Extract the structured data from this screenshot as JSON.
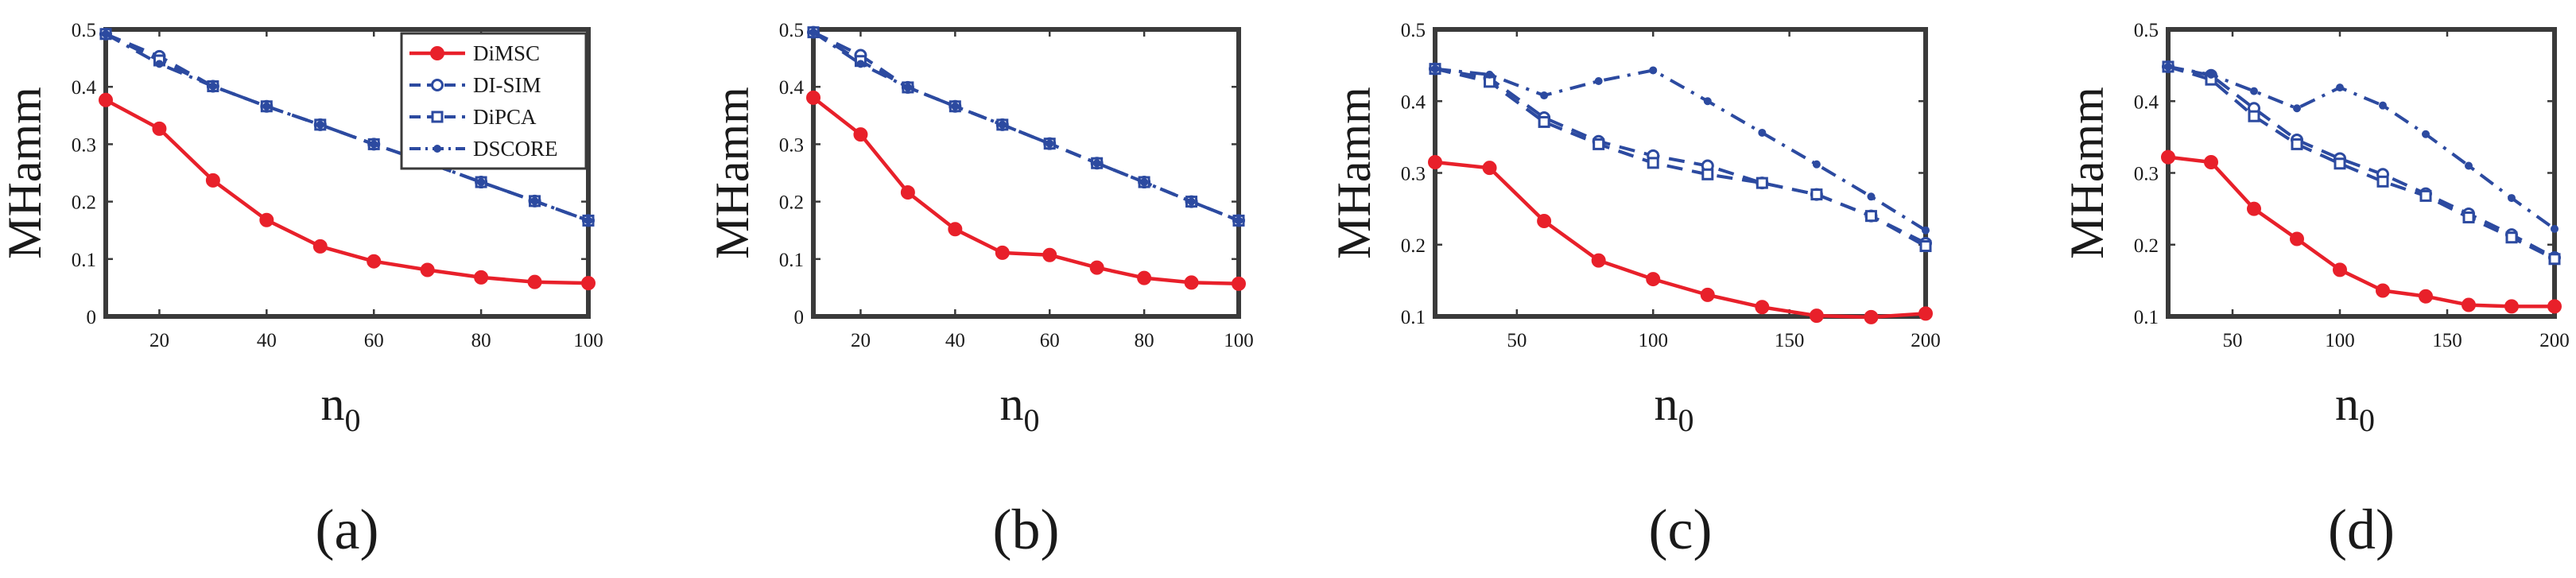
{
  "figure": {
    "colors": {
      "red": "#e8202a",
      "blue": "#2c4aa0",
      "axis": "#3a3a3a"
    }
  },
  "chart_data": [
    {
      "type": "line",
      "caption": "(a)",
      "xlabel_main": "n",
      "xlabel_sub": "0",
      "ylabel": "MHamm",
      "xlim": [
        10,
        100
      ],
      "ylim": [
        0,
        0.5
      ],
      "xticks": [
        20,
        40,
        60,
        80,
        100
      ],
      "yticks": [
        0,
        0.1,
        0.2,
        0.3,
        0.4,
        0.5
      ],
      "xtick_labels": [
        "20",
        "40",
        "60",
        "80",
        "100"
      ],
      "ytick_labels": [
        "0",
        "0.1",
        "0.2",
        "0.3",
        "0.4",
        "0.5"
      ],
      "legend": {
        "position": "top-right",
        "entries": [
          "DiMSC",
          "DI-SIM",
          "DiPCA",
          "DSCORE"
        ]
      },
      "x": [
        10,
        20,
        30,
        40,
        50,
        60,
        70,
        80,
        90,
        100
      ],
      "series": [
        {
          "name": "DiMSC",
          "marker": "filled-circle",
          "color": "#e8202a",
          "style": "solid",
          "values": [
            0.377,
            0.327,
            0.237,
            0.168,
            0.122,
            0.096,
            0.081,
            0.068,
            0.06,
            0.058
          ]
        },
        {
          "name": "DI-SIM",
          "marker": "open-circle",
          "color": "#2c4aa0",
          "style": "dashed",
          "values": [
            0.492,
            0.453,
            0.401,
            0.366,
            0.334,
            0.3,
            0.268,
            0.234,
            0.201,
            0.167
          ]
        },
        {
          "name": "DiPCA",
          "marker": "square",
          "color": "#2c4aa0",
          "style": "dashed",
          "values": [
            0.492,
            0.446,
            0.401,
            0.366,
            0.334,
            0.3,
            0.268,
            0.234,
            0.201,
            0.167
          ]
        },
        {
          "name": "DSCORE",
          "marker": "dot",
          "color": "#2c4aa0",
          "style": "dashdot",
          "values": [
            0.492,
            0.44,
            0.401,
            0.366,
            0.334,
            0.3,
            0.268,
            0.234,
            0.201,
            0.167
          ]
        }
      ]
    },
    {
      "type": "line",
      "caption": "(b)",
      "xlabel_main": "n",
      "xlabel_sub": "0",
      "ylabel": "MHamm",
      "xlim": [
        10,
        100
      ],
      "ylim": [
        0,
        0.5
      ],
      "xticks": [
        20,
        40,
        60,
        80,
        100
      ],
      "yticks": [
        0,
        0.1,
        0.2,
        0.3,
        0.4,
        0.5
      ],
      "xtick_labels": [
        "20",
        "40",
        "60",
        "80",
        "100"
      ],
      "ytick_labels": [
        "0",
        "0.1",
        "0.2",
        "0.3",
        "0.4",
        "0.5"
      ],
      "x": [
        10,
        20,
        30,
        40,
        50,
        60,
        70,
        80,
        90,
        100
      ],
      "series": [
        {
          "name": "DiMSC",
          "marker": "filled-circle",
          "color": "#e8202a",
          "style": "solid",
          "values": [
            0.381,
            0.317,
            0.216,
            0.152,
            0.111,
            0.107,
            0.085,
            0.067,
            0.059,
            0.057
          ]
        },
        {
          "name": "DI-SIM",
          "marker": "open-circle",
          "color": "#2c4aa0",
          "style": "dashed",
          "values": [
            0.495,
            0.455,
            0.399,
            0.366,
            0.334,
            0.301,
            0.267,
            0.234,
            0.2,
            0.167
          ]
        },
        {
          "name": "DiPCA",
          "marker": "square",
          "color": "#2c4aa0",
          "style": "dashed",
          "values": [
            0.495,
            0.445,
            0.399,
            0.366,
            0.334,
            0.301,
            0.267,
            0.234,
            0.2,
            0.167
          ]
        },
        {
          "name": "DSCORE",
          "marker": "dot",
          "color": "#2c4aa0",
          "style": "dashdot",
          "values": [
            0.495,
            0.44,
            0.399,
            0.366,
            0.334,
            0.301,
            0.267,
            0.234,
            0.2,
            0.167
          ]
        }
      ]
    },
    {
      "type": "line",
      "caption": "(c)",
      "xlabel_main": "n",
      "xlabel_sub": "0",
      "ylabel": "MHamm",
      "xlim": [
        20,
        200
      ],
      "ylim": [
        0.1,
        0.5
      ],
      "xticks": [
        50,
        100,
        150,
        200
      ],
      "yticks": [
        0.1,
        0.2,
        0.3,
        0.4,
        0.5
      ],
      "xtick_labels": [
        "50",
        "100",
        "150",
        "200"
      ],
      "ytick_labels": [
        "0.1",
        "0.2",
        "0.3",
        "0.4",
        "0.5"
      ],
      "x": [
        20,
        40,
        60,
        80,
        100,
        120,
        140,
        160,
        180,
        200
      ],
      "series": [
        {
          "name": "DiMSC",
          "marker": "filled-circle",
          "color": "#e8202a",
          "style": "solid",
          "values": [
            0.315,
            0.307,
            0.233,
            0.178,
            0.152,
            0.13,
            0.113,
            0.101,
            0.099,
            0.104
          ]
        },
        {
          "name": "DI-SIM",
          "marker": "open-circle",
          "color": "#2c4aa0",
          "style": "dashed",
          "values": [
            0.445,
            0.432,
            0.377,
            0.344,
            0.324,
            0.31,
            0.286,
            0.27,
            0.24,
            0.202
          ]
        },
        {
          "name": "DiPCA",
          "marker": "square",
          "color": "#2c4aa0",
          "style": "dashed",
          "values": [
            0.445,
            0.427,
            0.371,
            0.34,
            0.314,
            0.298,
            0.286,
            0.27,
            0.24,
            0.198
          ]
        },
        {
          "name": "DSCORE",
          "marker": "dot",
          "color": "#2c4aa0",
          "style": "dashdot",
          "values": [
            0.445,
            0.437,
            0.408,
            0.428,
            0.443,
            0.4,
            0.356,
            0.312,
            0.267,
            0.22
          ]
        }
      ]
    },
    {
      "type": "line",
      "caption": "(d)",
      "xlabel_main": "n",
      "xlabel_sub": "0",
      "ylabel": "MHamm",
      "xlim": [
        20,
        200
      ],
      "ylim": [
        0.1,
        0.5
      ],
      "xticks": [
        50,
        100,
        150,
        200
      ],
      "yticks": [
        0.1,
        0.2,
        0.3,
        0.4,
        0.5
      ],
      "xtick_labels": [
        "50",
        "100",
        "150",
        "200"
      ],
      "ytick_labels": [
        "0.1",
        "0.2",
        "0.3",
        "0.4",
        "0.5"
      ],
      "x": [
        20,
        40,
        60,
        80,
        100,
        120,
        140,
        160,
        180,
        200
      ],
      "series": [
        {
          "name": "DiMSC",
          "marker": "filled-circle",
          "color": "#e8202a",
          "style": "solid",
          "values": [
            0.322,
            0.315,
            0.25,
            0.208,
            0.165,
            0.136,
            0.128,
            0.116,
            0.114,
            0.114
          ]
        },
        {
          "name": "DI-SIM",
          "marker": "open-circle",
          "color": "#2c4aa0",
          "style": "dashed",
          "values": [
            0.448,
            0.436,
            0.39,
            0.346,
            0.32,
            0.298,
            0.271,
            0.243,
            0.214,
            0.182
          ]
        },
        {
          "name": "DiPCA",
          "marker": "square",
          "color": "#2c4aa0",
          "style": "dashed",
          "values": [
            0.448,
            0.43,
            0.379,
            0.34,
            0.313,
            0.288,
            0.268,
            0.238,
            0.21,
            0.18
          ]
        },
        {
          "name": "DSCORE",
          "marker": "dot",
          "color": "#2c4aa0",
          "style": "dashdot",
          "values": [
            0.448,
            0.437,
            0.414,
            0.39,
            0.419,
            0.394,
            0.354,
            0.31,
            0.265,
            0.222
          ]
        }
      ]
    }
  ]
}
